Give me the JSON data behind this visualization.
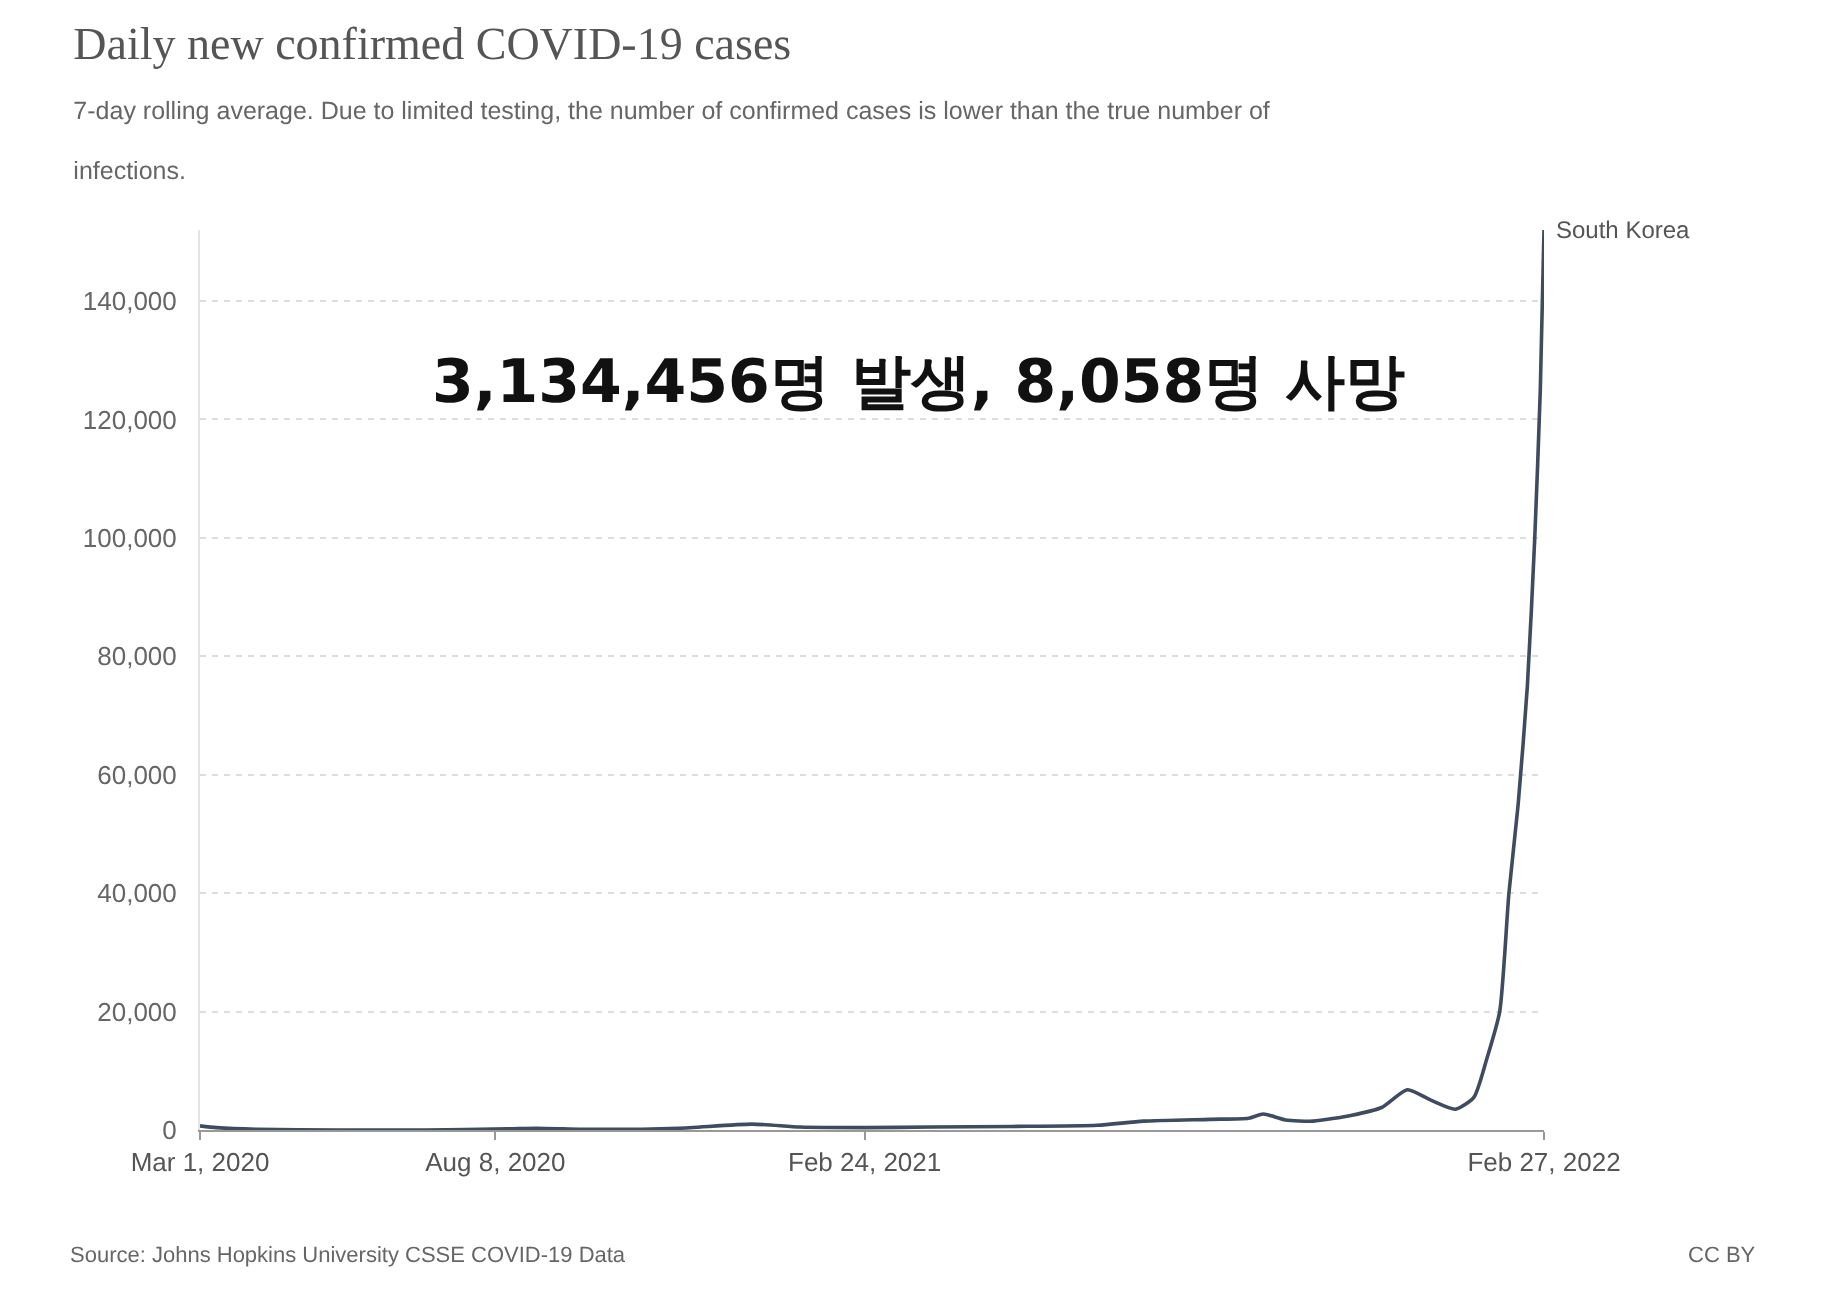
{
  "chart_data": {
    "type": "line",
    "title": "Daily new confirmed COVID-19 cases",
    "subtitle": "7-day rolling average. Due to limited testing, the number of confirmed cases is lower than the true number of infections.",
    "x": [
      "2020-03-01",
      "2020-03-10",
      "2020-04-01",
      "2020-05-15",
      "2020-07-01",
      "2020-08-15",
      "2020-08-30",
      "2020-10-01",
      "2020-11-15",
      "2020-12-25",
      "2021-01-20",
      "2021-02-24",
      "2021-04-01",
      "2021-05-15",
      "2021-06-30",
      "2021-07-25",
      "2021-08-30",
      "2021-09-20",
      "2021-09-28",
      "2021-10-10",
      "2021-10-25",
      "2021-11-15",
      "2021-12-01",
      "2021-12-15",
      "2021-12-28",
      "2022-01-10",
      "2022-01-20",
      "2022-01-27",
      "2022-02-03",
      "2022-02-08",
      "2022-02-13",
      "2022-02-18",
      "2022-02-22",
      "2022-02-25",
      "2022-02-27"
    ],
    "series": [
      {
        "name": "South Korea",
        "color": "#3f4b5e",
        "values": [
          700,
          400,
          100,
          0,
          0,
          200,
          300,
          100,
          300,
          1000,
          500,
          400,
          500,
          600,
          800,
          1500,
          1800,
          2000,
          2700,
          1700,
          1500,
          2500,
          3800,
          6800,
          5000,
          3500,
          5500,
          12000,
          20000,
          40000,
          55000,
          75000,
          100000,
          125000,
          152000
        ]
      }
    ],
    "xlim": [
      "2020-03-01",
      "2022-02-27"
    ],
    "xticks": [
      {
        "value": "2020-03-01",
        "label": "Mar 1, 2020"
      },
      {
        "value": "2020-08-08",
        "label": "Aug 8, 2020"
      },
      {
        "value": "2021-02-24",
        "label": "Feb 24, 2021"
      },
      {
        "value": "2022-02-27",
        "label": "Feb 27, 2022"
      }
    ],
    "ylim": [
      0,
      152000
    ],
    "yticks": [
      {
        "value": 0,
        "label": "0"
      },
      {
        "value": 20000,
        "label": "20,000"
      },
      {
        "value": 40000,
        "label": "40,000"
      },
      {
        "value": 60000,
        "label": "60,000"
      },
      {
        "value": 80000,
        "label": "80,000"
      },
      {
        "value": 100000,
        "label": "100,000"
      },
      {
        "value": 120000,
        "label": "120,000"
      },
      {
        "value": 140000,
        "label": "140,000"
      }
    ],
    "grid": "y",
    "legend": false,
    "marker": "none",
    "line_style": "solid",
    "annotations": [
      "3,134,456명 발생, 8,058명 사망",
      "Source: Johns Hopkins University CSSE COVID-19 Data",
      "CC BY"
    ]
  }
}
